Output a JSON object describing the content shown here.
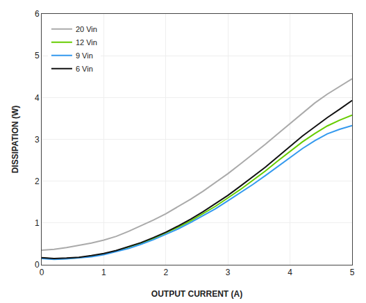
{
  "chart_data": {
    "type": "line",
    "xlabel": "OUTPUT CURRENT (A)",
    "ylabel": "DISSIPATION (W)",
    "xlim": [
      0,
      5
    ],
    "ylim": [
      0,
      6
    ],
    "xticks": [
      0,
      1,
      2,
      3,
      4,
      5
    ],
    "yticks": [
      0,
      1,
      2,
      3,
      4,
      5,
      6
    ],
    "grid": true,
    "legend": "upper left",
    "x": [
      0,
      0.2,
      0.4,
      0.6,
      0.8,
      1.0,
      1.2,
      1.4,
      1.6,
      1.8,
      2.0,
      2.2,
      2.4,
      2.6,
      2.8,
      3.0,
      3.2,
      3.4,
      3.6,
      3.8,
      4.0,
      4.2,
      4.4,
      4.6,
      4.8,
      5.0
    ],
    "series": [
      {
        "name": "20 Vin",
        "color": "#aaaaaa",
        "values": [
          0.35,
          0.37,
          0.41,
          0.46,
          0.52,
          0.59,
          0.68,
          0.8,
          0.93,
          1.07,
          1.22,
          1.39,
          1.57,
          1.76,
          1.97,
          2.18,
          2.41,
          2.64,
          2.88,
          3.13,
          3.38,
          3.63,
          3.87,
          4.08,
          4.27,
          4.45
        ]
      },
      {
        "name": "12 Vin",
        "color": "#66cc00",
        "values": [
          0.16,
          0.14,
          0.15,
          0.17,
          0.21,
          0.26,
          0.33,
          0.42,
          0.52,
          0.63,
          0.76,
          0.9,
          1.05,
          1.22,
          1.4,
          1.6,
          1.8,
          2.02,
          2.24,
          2.48,
          2.71,
          2.94,
          3.14,
          3.32,
          3.46,
          3.58
        ]
      },
      {
        "name": "9 Vin",
        "color": "#3399ee",
        "values": [
          0.15,
          0.13,
          0.14,
          0.16,
          0.19,
          0.24,
          0.31,
          0.39,
          0.49,
          0.6,
          0.73,
          0.86,
          1.01,
          1.17,
          1.34,
          1.53,
          1.72,
          1.92,
          2.13,
          2.35,
          2.56,
          2.78,
          2.97,
          3.13,
          3.24,
          3.33
        ]
      },
      {
        "name": "6 Vin",
        "color": "#111111",
        "values": [
          0.17,
          0.15,
          0.16,
          0.18,
          0.22,
          0.27,
          0.34,
          0.43,
          0.53,
          0.65,
          0.78,
          0.93,
          1.09,
          1.27,
          1.46,
          1.66,
          1.88,
          2.1,
          2.33,
          2.58,
          2.83,
          3.08,
          3.3,
          3.52,
          3.72,
          3.93
        ]
      }
    ]
  }
}
